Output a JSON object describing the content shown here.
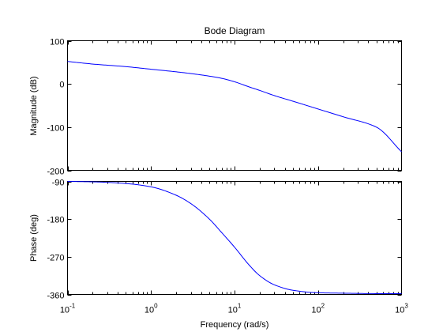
{
  "chart_data": [
    {
      "type": "line",
      "panel": "magnitude",
      "title": "Bode Diagram",
      "ylabel": "Magnitude (dB)",
      "xscale": "log",
      "xlim": [
        0.1,
        1000
      ],
      "ylim": [
        -200,
        100
      ],
      "yticks": [
        "100",
        "0",
        "-100",
        "-200"
      ],
      "yticks_values": [
        100,
        0,
        -100,
        -200
      ],
      "grid": false,
      "series": [
        {
          "color": "#0000ff",
          "x": [
            0.1,
            0.2,
            0.5,
            1,
            2,
            3,
            5,
            7,
            10,
            15,
            20,
            30,
            50,
            100,
            200,
            500,
            1000
          ],
          "y": [
            52,
            46,
            40,
            34,
            28,
            24,
            18,
            13,
            5,
            -7,
            -15,
            -27,
            -40,
            -58,
            -76,
            -100,
            -157
          ]
        }
      ]
    },
    {
      "type": "line",
      "panel": "phase",
      "xlabel": "Frequency  (rad/s)",
      "ylabel": "Phase (deg)",
      "xscale": "log",
      "xlim": [
        0.1,
        1000
      ],
      "ylim": [
        -360,
        -90
      ],
      "xticks": [
        {
          "base": "10",
          "exp": "-1"
        },
        {
          "base": "10",
          "exp": "0"
        },
        {
          "base": "10",
          "exp": "1"
        },
        {
          "base": "10",
          "exp": "2"
        },
        {
          "base": "10",
          "exp": "3"
        }
      ],
      "xticks_values": [
        0.1,
        1,
        10,
        100,
        1000
      ],
      "yticks": [
        "-90",
        "-180",
        "-270",
        "-360"
      ],
      "yticks_values": [
        -90,
        -180,
        -270,
        -360
      ],
      "grid": false,
      "series": [
        {
          "color": "#0000ff",
          "x": [
            0.1,
            0.2,
            0.5,
            1,
            2,
            3,
            5,
            7,
            10,
            15,
            20,
            30,
            50,
            100,
            200,
            500,
            1000
          ],
          "y": [
            -90,
            -91,
            -95,
            -103,
            -123,
            -143,
            -180,
            -212,
            -247,
            -290,
            -315,
            -337,
            -350,
            -356,
            -357,
            -358,
            -358
          ]
        }
      ]
    }
  ]
}
